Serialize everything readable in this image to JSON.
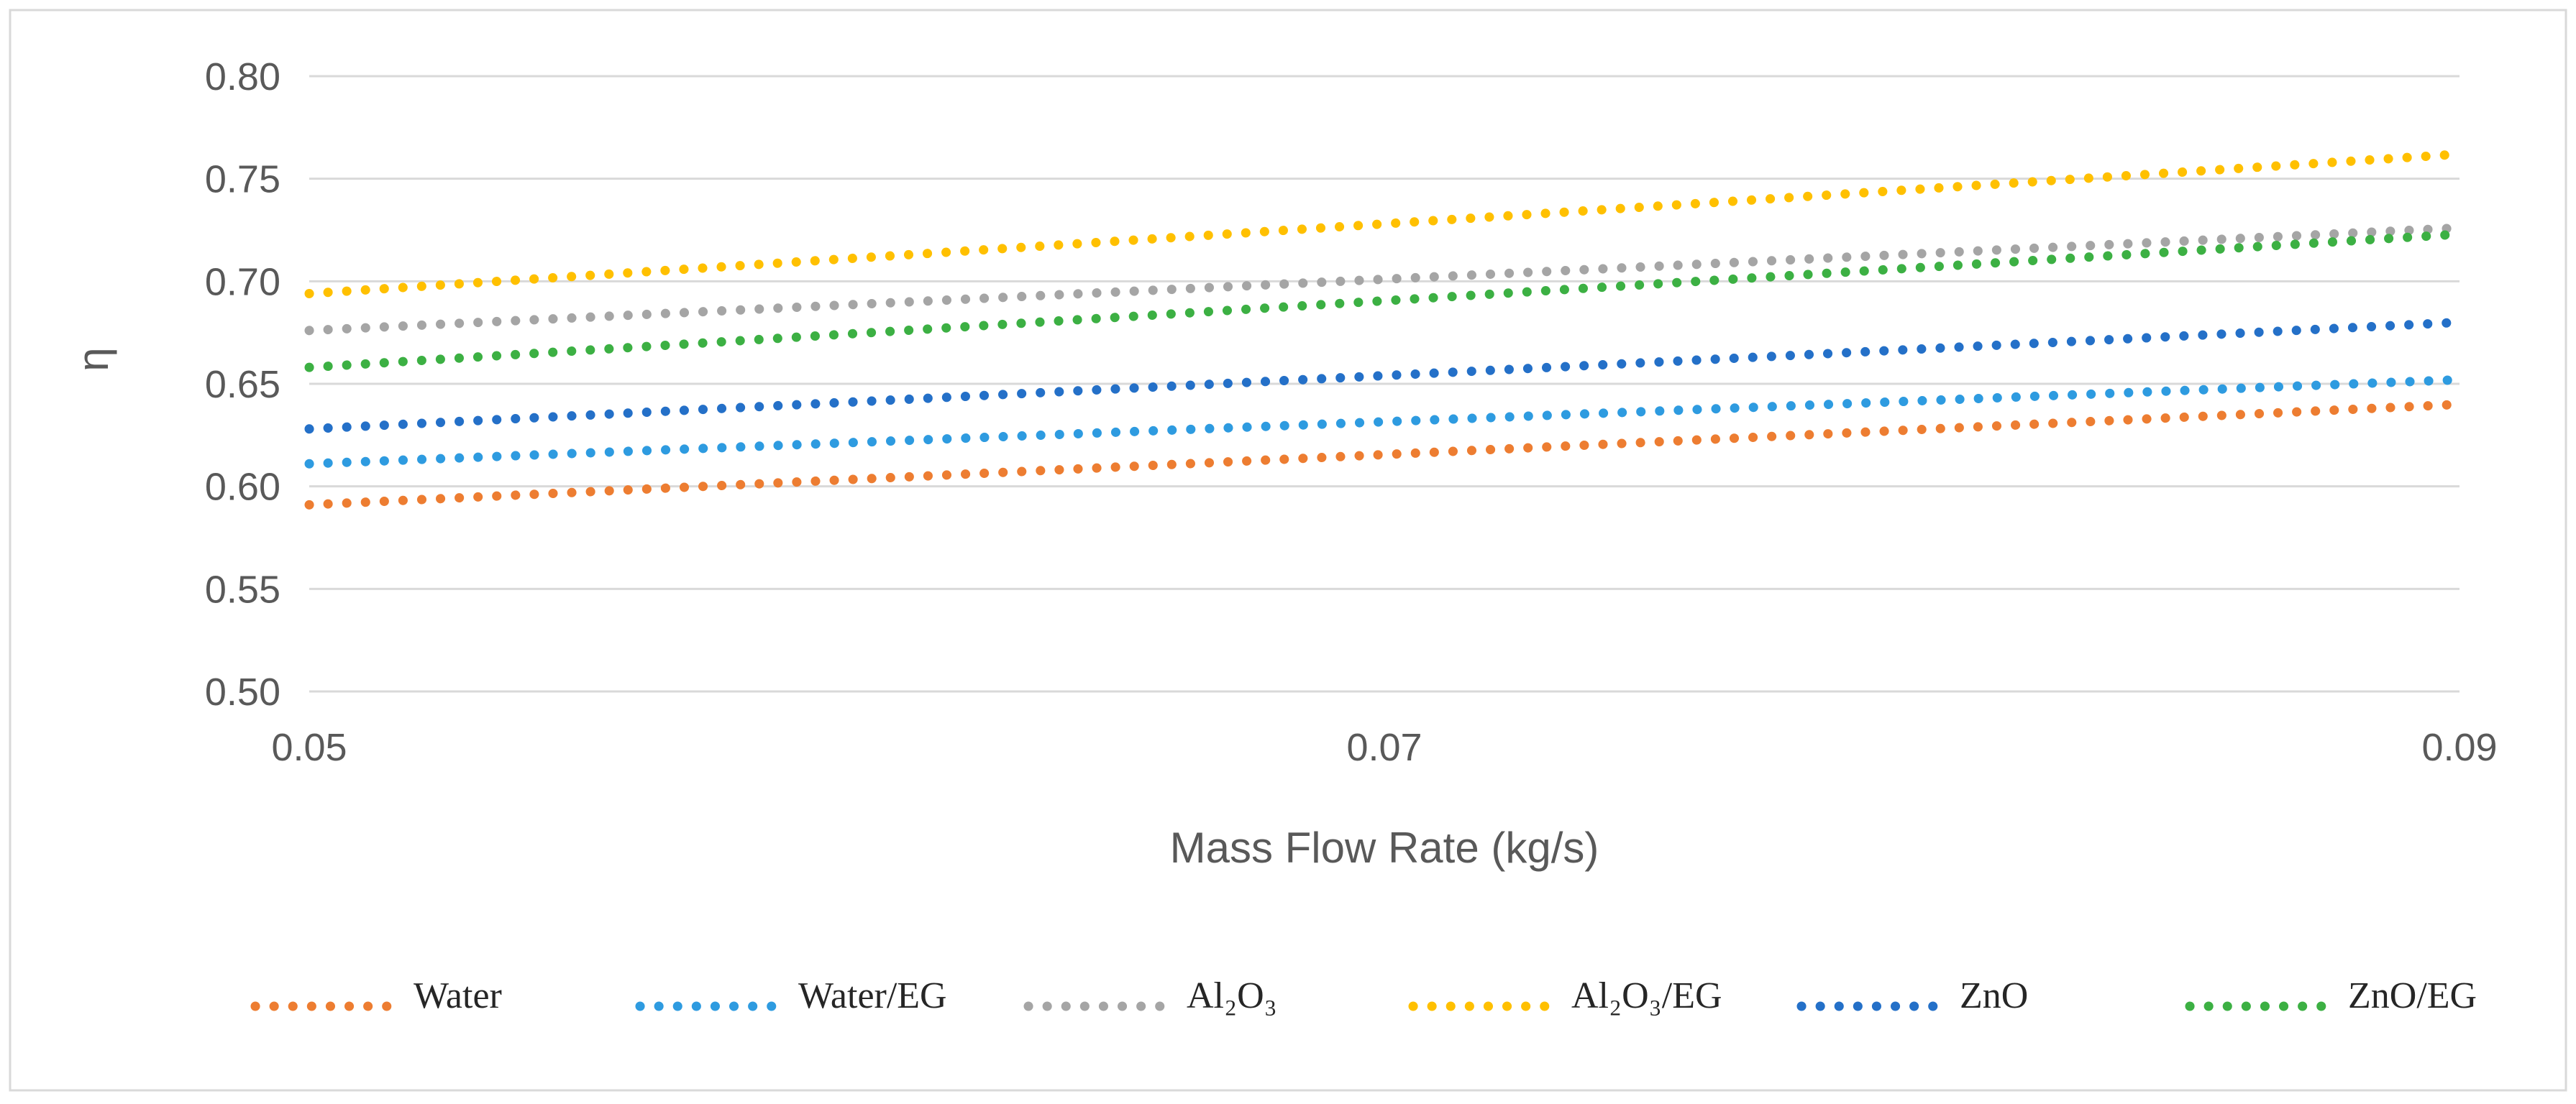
{
  "chart_data": {
    "type": "line",
    "title": "",
    "xlabel": "Mass Flow Rate (kg/s)",
    "ylabel": "η",
    "xlim": [
      0.05,
      0.09
    ],
    "ylim": [
      0.5,
      0.8
    ],
    "x_ticks": [
      "0.05",
      "0.07",
      "0.09"
    ],
    "x_tick_values": [
      0.05,
      0.07,
      0.09
    ],
    "y_ticks": [
      "0.50",
      "0.55",
      "0.60",
      "0.65",
      "0.70",
      "0.75",
      "0.80"
    ],
    "y_tick_values": [
      0.5,
      0.55,
      0.6,
      0.65,
      0.7,
      0.75,
      0.8
    ],
    "grid": "horizontal",
    "legend_position": "bottom",
    "line_style": "dotted",
    "x": [
      0.05,
      0.09
    ],
    "series": [
      {
        "name": "Water",
        "color": "#ED7D31",
        "values": [
          0.591,
          0.64
        ]
      },
      {
        "name": "Water/EG",
        "color": "#2E9BE0",
        "values": [
          0.611,
          0.652
        ]
      },
      {
        "name": "Al₂O₃",
        "color": "#A5A5A5",
        "values": [
          0.676,
          0.726
        ]
      },
      {
        "name": "Al₂O₃/EG",
        "color": "#FFC000",
        "values": [
          0.694,
          0.762
        ]
      },
      {
        "name": "ZnO",
        "color": "#2470C8",
        "values": [
          0.628,
          0.68
        ]
      },
      {
        "name": "ZnO/EG",
        "color": "#3CB043",
        "values": [
          0.658,
          0.723
        ]
      }
    ]
  }
}
